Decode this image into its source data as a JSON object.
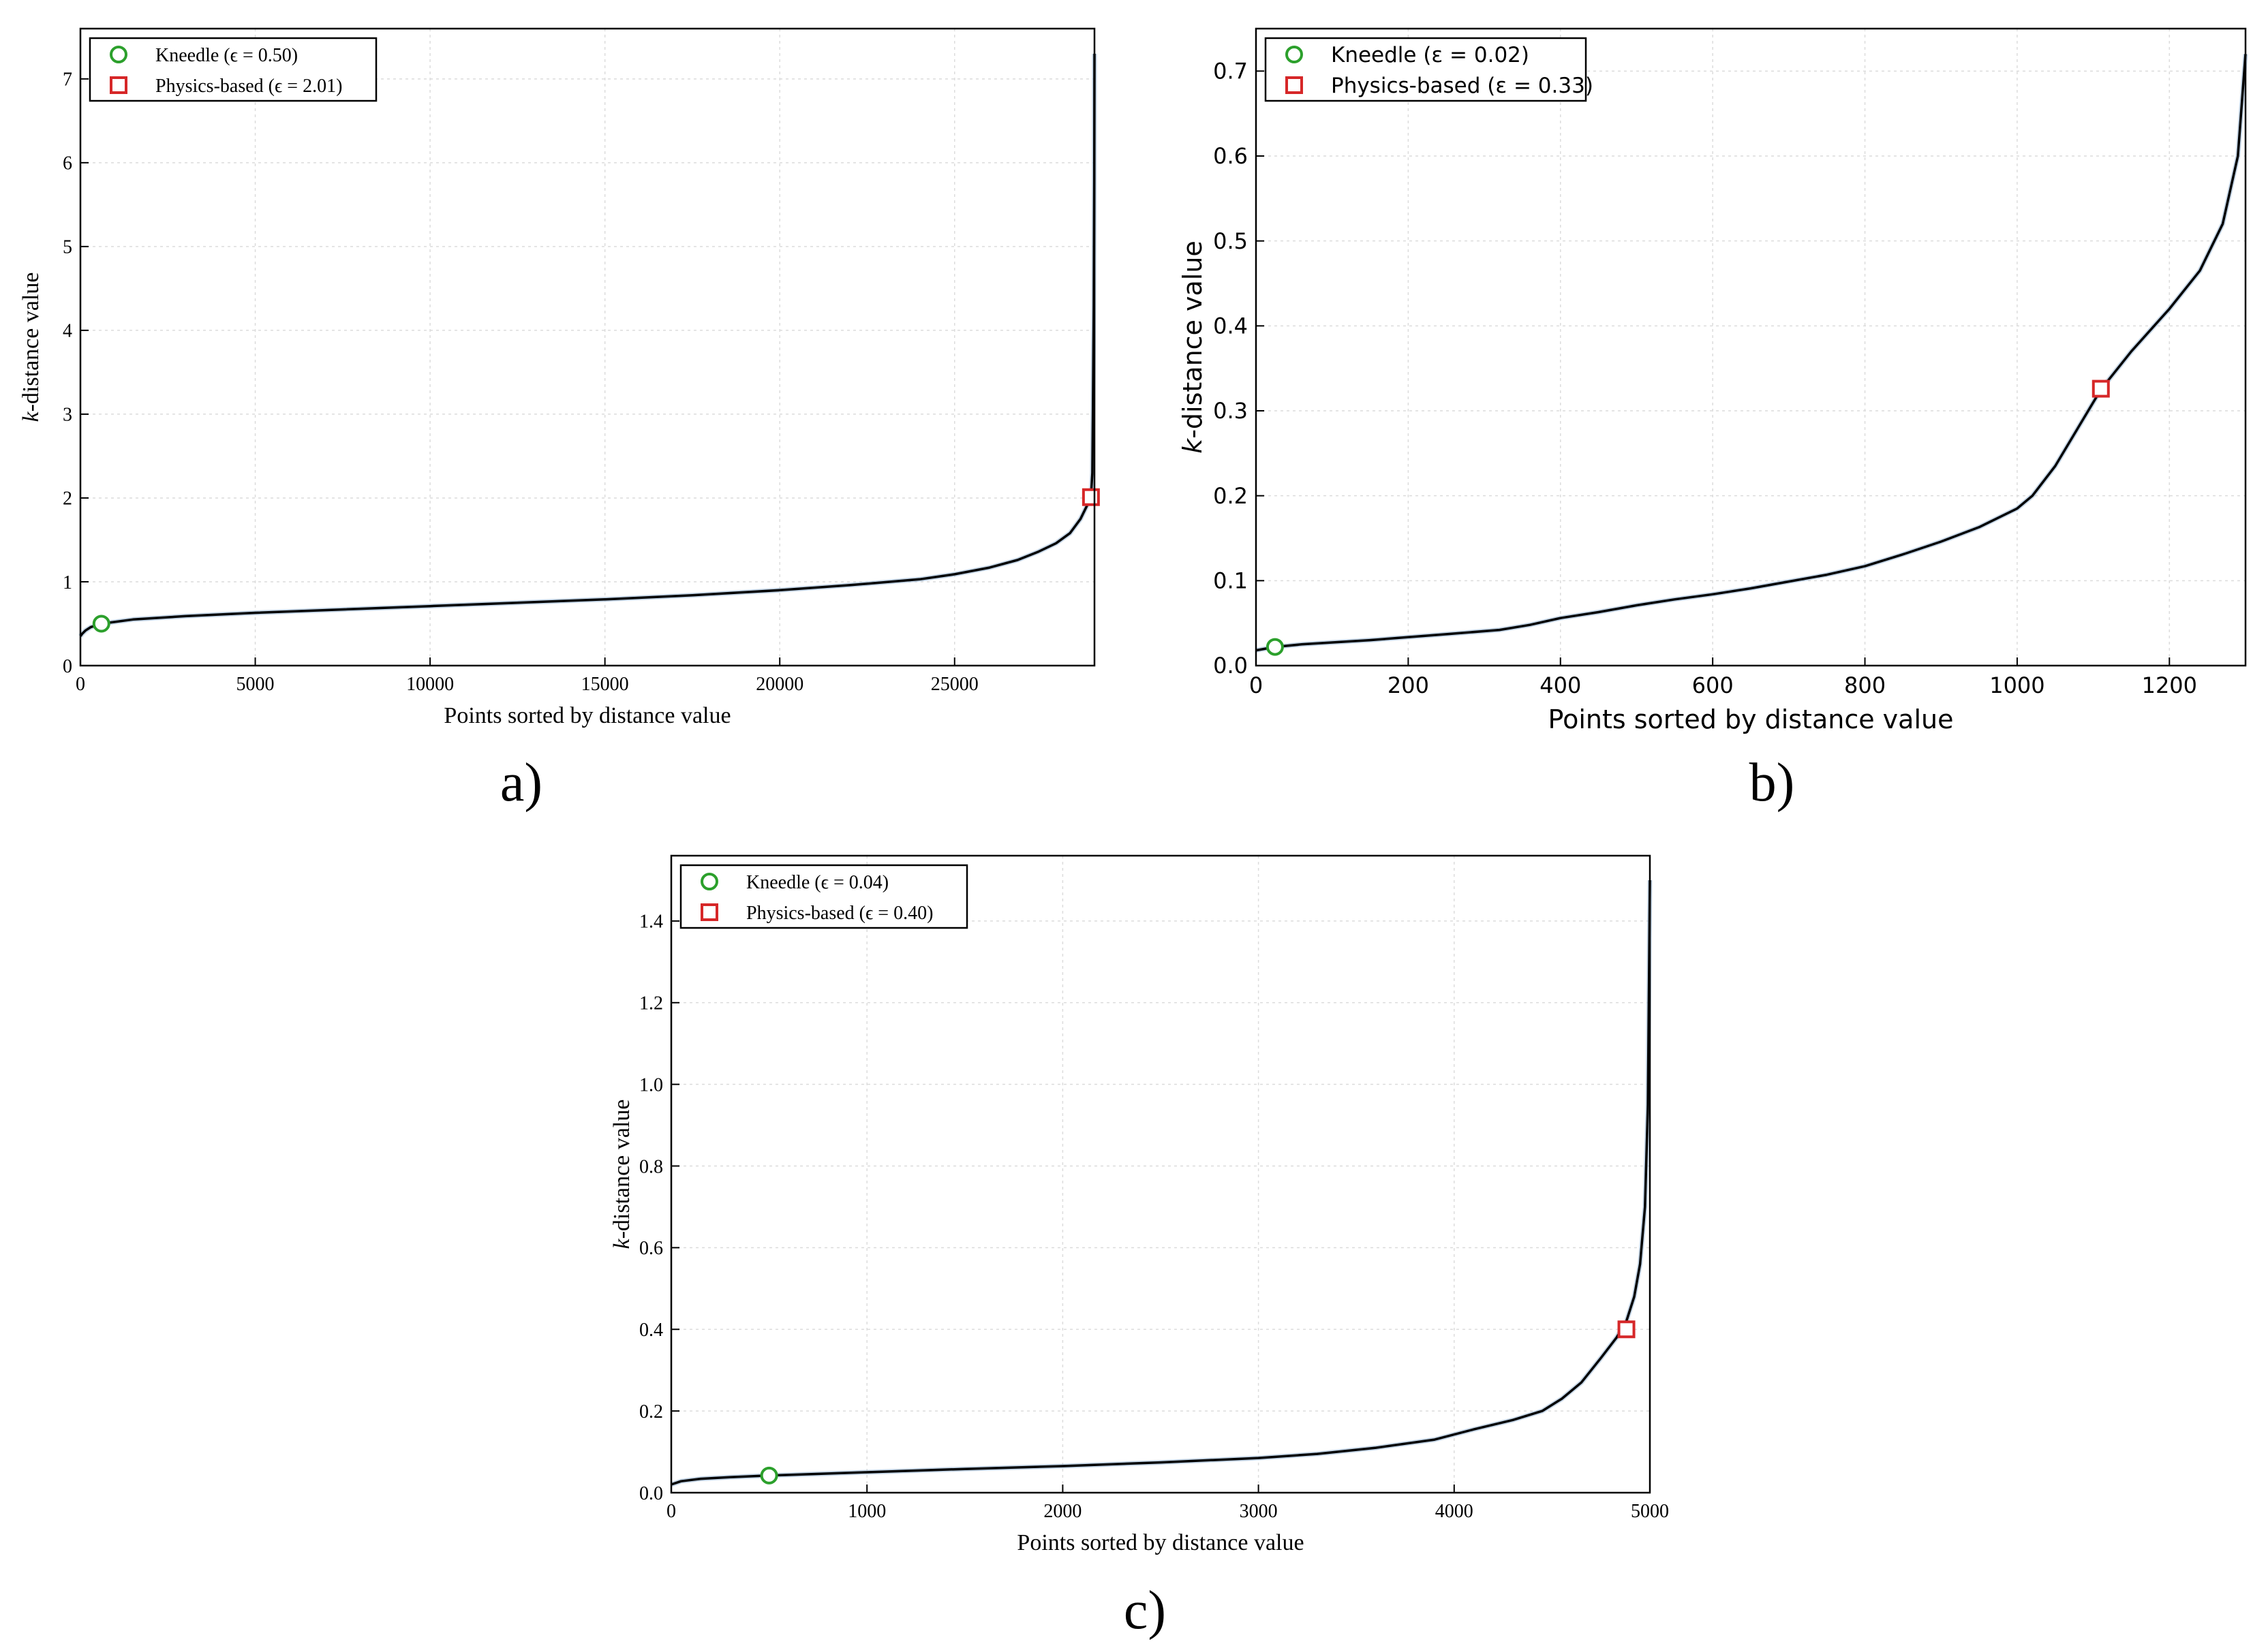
{
  "figure": {
    "panel_labels": [
      "a)",
      "b)",
      "c)"
    ]
  },
  "chart_data": [
    {
      "type": "line",
      "panel": "a)",
      "xlabel": "Points sorted by distance value",
      "ylabel": "k-distance value",
      "xlim": [
        0,
        29000
      ],
      "ylim": [
        0,
        7.6
      ],
      "xticks": [
        0,
        5000,
        10000,
        15000,
        20000,
        25000
      ],
      "yticks": [
        0,
        1,
        2,
        3,
        4,
        5,
        6,
        7
      ],
      "grid": true,
      "legend_position": "top-left",
      "curve": {
        "x": [
          0,
          50,
          150,
          300,
          600,
          1500,
          3000,
          5000,
          7500,
          10000,
          12500,
          15000,
          17500,
          20000,
          22000,
          24000,
          25000,
          26000,
          26800,
          27400,
          27900,
          28300,
          28600,
          28800,
          28900,
          28940,
          28960,
          28980,
          28995,
          29000
        ],
        "y": [
          0.35,
          0.38,
          0.42,
          0.46,
          0.5,
          0.55,
          0.59,
          0.63,
          0.67,
          0.71,
          0.75,
          0.79,
          0.84,
          0.9,
          0.96,
          1.03,
          1.09,
          1.17,
          1.26,
          1.36,
          1.46,
          1.58,
          1.75,
          1.92,
          2.02,
          2.3,
          3.2,
          4.3,
          5.8,
          7.3
        ]
      },
      "markers": [
        {
          "name": "Kneedle",
          "label": "Kneedle (ϵ = 0.50)",
          "shape": "circle",
          "color": "#2ca02c",
          "x": 600,
          "y": 0.5
        },
        {
          "name": "Physics-based",
          "label": "Physics-based (ϵ = 2.01)",
          "shape": "square",
          "color": "#d62728",
          "x": 28900,
          "y": 2.01
        }
      ]
    },
    {
      "type": "line",
      "panel": "b)",
      "xlabel": "Points sorted by distance value",
      "ylabel": "k-distance value",
      "xlim": [
        0,
        1300
      ],
      "ylim": [
        0,
        0.75
      ],
      "xticks": [
        0,
        200,
        400,
        600,
        800,
        1000,
        1200
      ],
      "yticks": [
        0.0,
        0.1,
        0.2,
        0.3,
        0.4,
        0.5,
        0.6,
        0.7
      ],
      "ytick_labels": [
        "0.0",
        "0.1",
        "0.2",
        "0.3",
        "0.4",
        "0.5",
        "0.6",
        "0.7"
      ],
      "grid": true,
      "legend_position": "top-left",
      "curve": {
        "x": [
          0,
          25,
          60,
          150,
          250,
          320,
          360,
          400,
          450,
          500,
          550,
          600,
          650,
          700,
          750,
          800,
          850,
          900,
          950,
          1000,
          1020,
          1050,
          1080,
          1110,
          1150,
          1200,
          1240,
          1270,
          1290,
          1300
        ],
        "y": [
          0.018,
          0.022,
          0.025,
          0.03,
          0.037,
          0.042,
          0.048,
          0.056,
          0.063,
          0.071,
          0.078,
          0.084,
          0.091,
          0.099,
          0.107,
          0.117,
          0.131,
          0.146,
          0.163,
          0.185,
          0.2,
          0.235,
          0.28,
          0.325,
          0.37,
          0.42,
          0.465,
          0.52,
          0.6,
          0.72
        ]
      },
      "markers": [
        {
          "name": "Kneedle",
          "label": "Kneedle (ε = 0.02)",
          "shape": "circle",
          "color": "#2ca02c",
          "x": 25,
          "y": 0.022
        },
        {
          "name": "Physics-based",
          "label": "Physics-based (ε = 0.33)",
          "shape": "square",
          "color": "#d62728",
          "x": 1110,
          "y": 0.326
        }
      ]
    },
    {
      "type": "line",
      "panel": "c)",
      "xlabel": "Points sorted by distance value",
      "ylabel": "k-distance value",
      "xlim": [
        0,
        5000
      ],
      "ylim": [
        0,
        1.56
      ],
      "xticks": [
        0,
        1000,
        2000,
        3000,
        4000,
        5000
      ],
      "yticks": [
        0.0,
        0.2,
        0.4,
        0.6,
        0.8,
        1.0,
        1.2,
        1.4
      ],
      "ytick_labels": [
        "0.0",
        "0.2",
        "0.4",
        "0.6",
        "0.8",
        "1.0",
        "1.2",
        "1.4"
      ],
      "grid": true,
      "legend_position": "top-left",
      "curve": {
        "x": [
          0,
          50,
          150,
          300,
          500,
          1000,
          1500,
          2000,
          2500,
          3000,
          3300,
          3600,
          3900,
          4100,
          4300,
          4450,
          4550,
          4650,
          4750,
          4830,
          4880,
          4920,
          4950,
          4975,
          4990,
          5000
        ],
        "y": [
          0.02,
          0.028,
          0.034,
          0.038,
          0.042,
          0.05,
          0.058,
          0.065,
          0.074,
          0.085,
          0.095,
          0.11,
          0.13,
          0.155,
          0.178,
          0.2,
          0.23,
          0.27,
          0.33,
          0.38,
          0.42,
          0.48,
          0.56,
          0.7,
          0.95,
          1.5
        ]
      },
      "markers": [
        {
          "name": "Kneedle",
          "label": "Kneedle (ϵ = 0.04)",
          "shape": "circle",
          "color": "#2ca02c",
          "x": 500,
          "y": 0.042
        },
        {
          "name": "Physics-based",
          "label": "Physics-based (ϵ = 0.40)",
          "shape": "square",
          "color": "#d62728",
          "x": 4880,
          "y": 0.4
        }
      ]
    }
  ]
}
